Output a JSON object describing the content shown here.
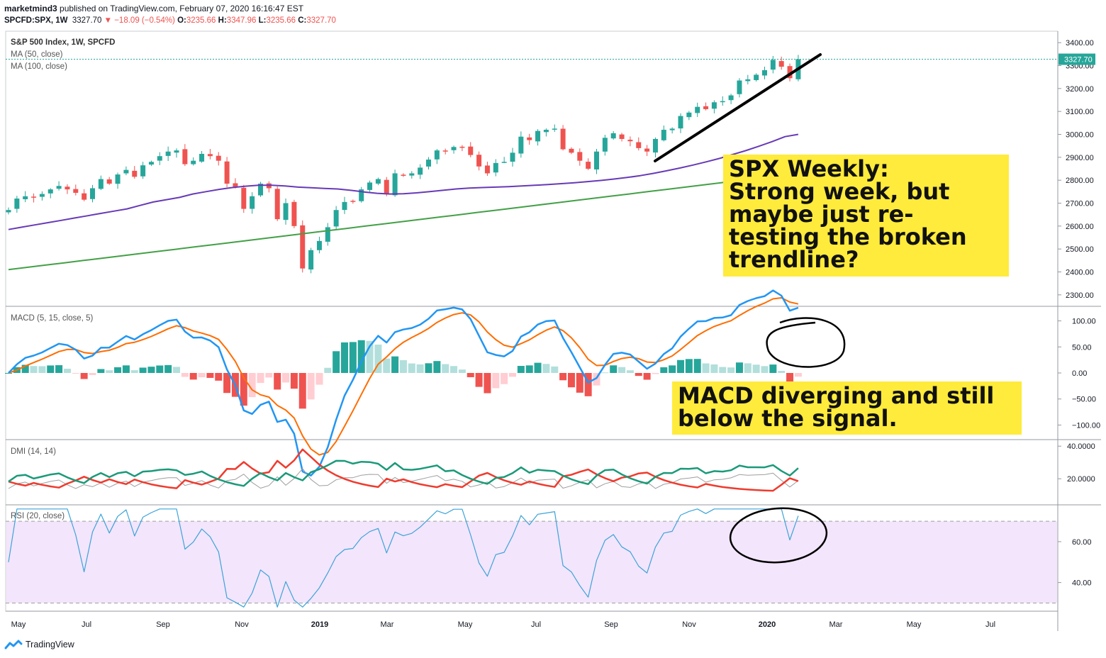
{
  "header": {
    "author": "marketmind3",
    "published": "published on TradingView.com, February 07, 2020 16:16:47 EST",
    "symbol": "SPCFD:SPX, 1W",
    "last": "3327.70",
    "change": "▼ −18.09 (−0.54%)",
    "o_label": "O:",
    "o": "3235.66",
    "h_label": "H:",
    "h": "3347.96",
    "l_label": "L:",
    "l": "3235.66",
    "c_label": "C:",
    "c": "3327.70"
  },
  "panes": {
    "main": {
      "title": "S&P 500 Index, 1W, SPCFD",
      "ma50": "MA (50, close)",
      "ma100": "MA (100, close)"
    },
    "macd": {
      "title": "MACD (5, 15, close, 5)"
    },
    "dmi": {
      "title": "DMI (14, 14)"
    },
    "rsi": {
      "title": "RSI (20, close)"
    }
  },
  "annotations": {
    "main_note": [
      "SPX Weekly:",
      "Strong week, but",
      "maybe just re-",
      "testing the broken",
      "trendline?"
    ],
    "macd_note": [
      "MACD diverging and still",
      "below the signal."
    ]
  },
  "footer": {
    "brand": "TradingView"
  },
  "colors": {
    "up": "#26a69a",
    "down": "#ef5350",
    "ma50": "#673ab7",
    "ma100": "#43a047",
    "macd": "#2196f3",
    "signal": "#ff6d00",
    "note_bg": "#ffeb3b",
    "rsi_band": "#f3e5fc",
    "rsi_line": "#3ba4d8",
    "dmi_plus": "#1a9a7a",
    "dmi_minus": "#ef3b2e",
    "adx": "#9e9e9e"
  },
  "chart_data": {
    "type": "candlestick",
    "timeframe": "1W",
    "x_tick_labels": [
      "May",
      "Jul",
      "Sep",
      "Nov",
      "2019",
      "Mar",
      "May",
      "Jul",
      "Sep",
      "Nov",
      "2020",
      "Mar",
      "May",
      "Jul"
    ],
    "price_axis": {
      "min": 2250,
      "max": 3450,
      "ticks": [
        3400,
        3300,
        3200,
        3100,
        3000,
        2900,
        2800,
        2700,
        2600,
        2500,
        2400,
        2300
      ],
      "last_price_label": "3327.70",
      "last_price": 3327.7
    },
    "closes": [
      2670,
      2720,
      2730,
      2725,
      2740,
      2760,
      2775,
      2760,
      2745,
      2715,
      2765,
      2805,
      2785,
      2825,
      2845,
      2815,
      2865,
      2880,
      2905,
      2925,
      2930,
      2870,
      2885,
      2915,
      2905,
      2885,
      2785,
      2770,
      2675,
      2730,
      2785,
      2765,
      2630,
      2700,
      2600,
      2415,
      2495,
      2535,
      2595,
      2670,
      2705,
      2710,
      2760,
      2790,
      2805,
      2740,
      2830,
      2820,
      2830,
      2855,
      2890,
      2930,
      2925,
      2945,
      2945,
      2910,
      2860,
      2830,
      2875,
      2880,
      2920,
      2990,
      2975,
      3015,
      3020,
      3025,
      2935,
      2920,
      2885,
      2850,
      2925,
      2985,
      3005,
      2980,
      2970,
      2940,
      2925,
      2980,
      3020,
      3025,
      3080,
      3095,
      3120,
      3110,
      3140,
      3145,
      3170,
      3235,
      3240,
      3260,
      3280,
      3325,
      3295,
      3245,
      3327.7
    ],
    "ma50": [
      2585,
      2595,
      2605,
      2615,
      2625,
      2635,
      2645,
      2655,
      2665,
      2675,
      2690,
      2705,
      2715,
      2725,
      2740,
      2750,
      2760,
      2768,
      2774,
      2778,
      2778,
      2775,
      2770,
      2767,
      2764,
      2762,
      2756,
      2749,
      2743,
      2740,
      2741,
      2745,
      2750,
      2756,
      2762,
      2766,
      2768,
      2770,
      2772,
      2775,
      2778,
      2781,
      2785,
      2789,
      2794,
      2799,
      2805,
      2812,
      2820,
      2830,
      2841,
      2853,
      2866,
      2880,
      2895,
      2912,
      2929,
      2948,
      2968,
      2990,
      3000
    ],
    "ma100": [
      2410,
      2420,
      2430,
      2440,
      2450,
      2460,
      2470,
      2480,
      2490,
      2500,
      2510,
      2520,
      2530,
      2540,
      2550,
      2560,
      2570,
      2580,
      2590,
      2600,
      2610,
      2620,
      2630,
      2640,
      2650,
      2660,
      2670,
      2680,
      2690,
      2700,
      2710,
      2720,
      2730,
      2740,
      2750,
      2760,
      2770,
      2780,
      2790,
      2800,
      2810,
      2820,
      2830
    ],
    "macd": {
      "axis_ticks": [
        100,
        50,
        0,
        -50,
        -100
      ],
      "range": [
        -128,
        128
      ]
    },
    "dmi": {
      "axis_ticks": [
        40,
        20
      ],
      "range": [
        4,
        44
      ]
    },
    "rsi": {
      "axis_ticks": [
        60,
        40
      ],
      "range": [
        26,
        78
      ],
      "band": [
        30,
        70
      ]
    }
  }
}
